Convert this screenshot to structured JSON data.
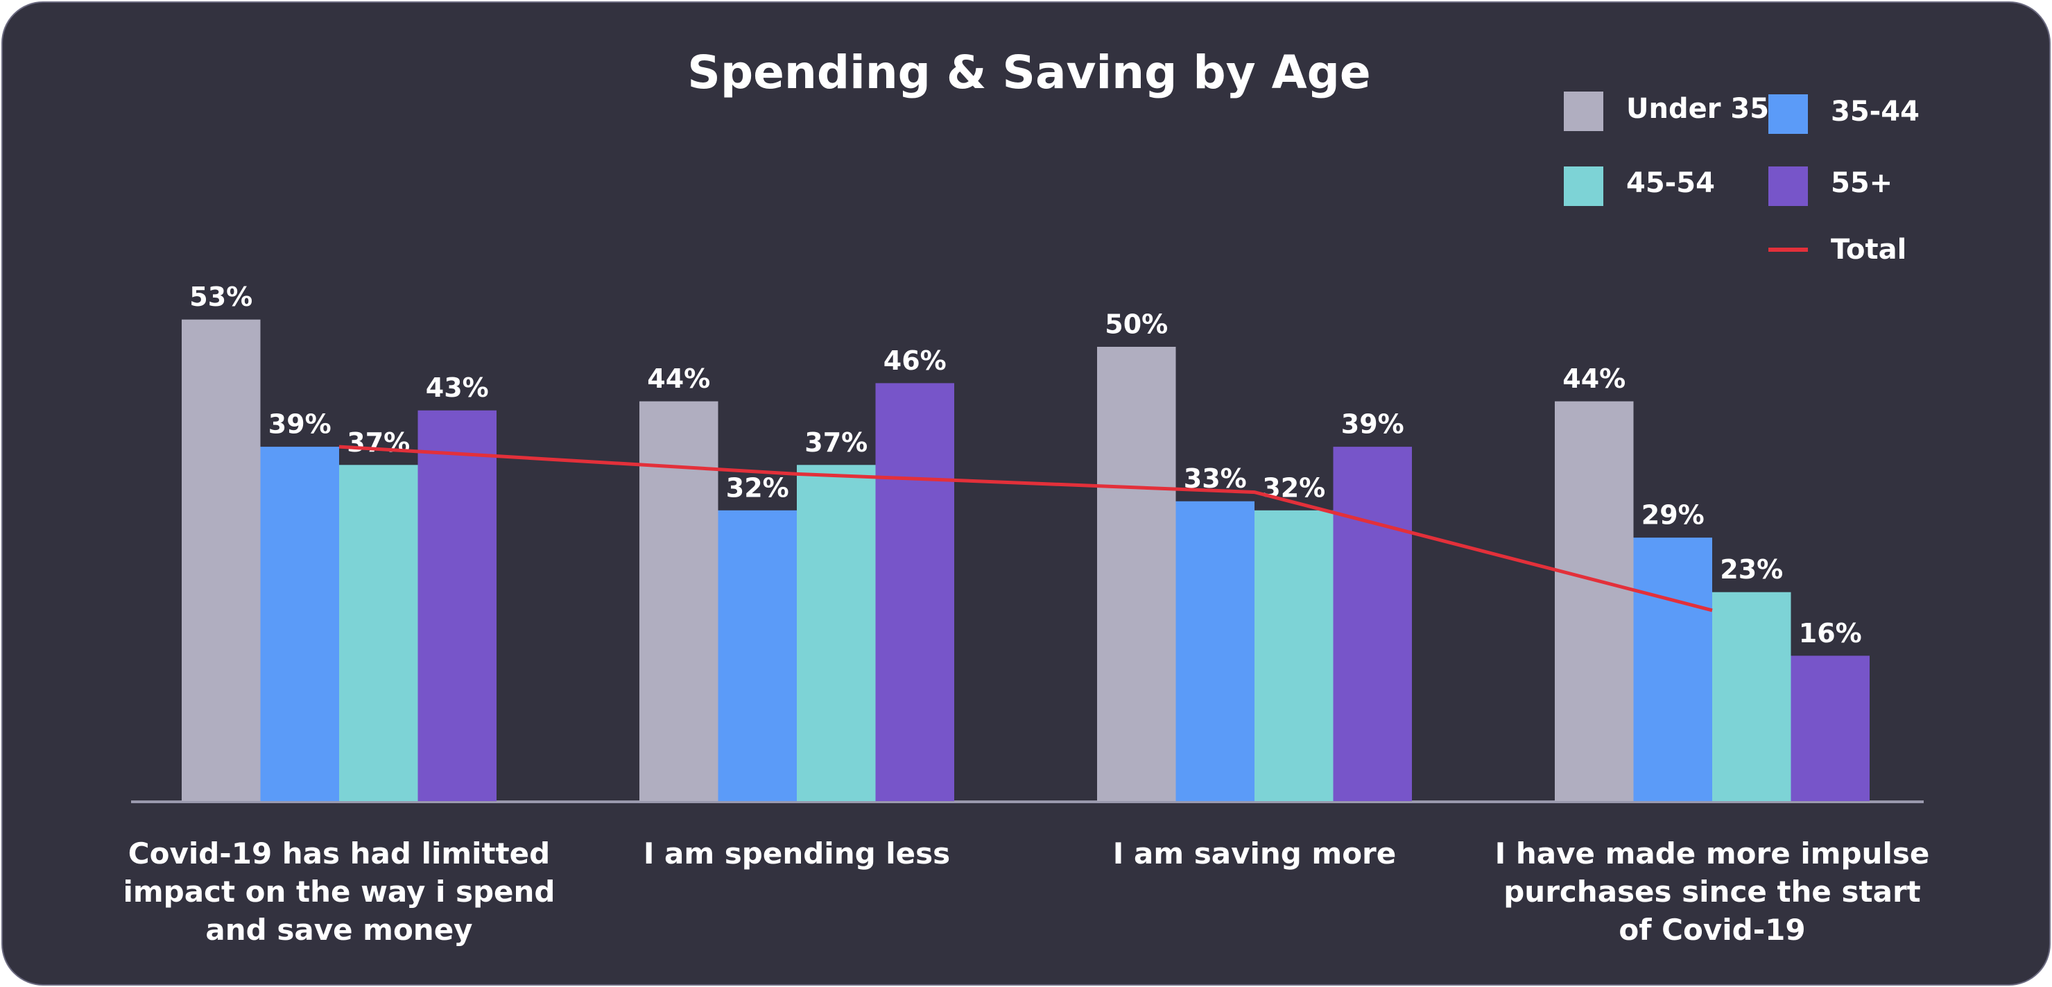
{
  "chart_data": {
    "type": "bar",
    "title": "Spending & Saving by Age",
    "categories": [
      "Covid-19 has had limitted impact on the way i spend and save money",
      "I am spending less",
      "I am saving more",
      "I have made more impulse purchases since the start of Covid-19"
    ],
    "series": [
      {
        "name": "Under 35",
        "color": "#b0aec0",
        "values": [
          53,
          44,
          50,
          44
        ],
        "value_labels": [
          "53%",
          "44%",
          "50%",
          "44%"
        ]
      },
      {
        "name": "35-44",
        "color": "#5b9bf8",
        "values": [
          39,
          32,
          33,
          29
        ],
        "value_labels": [
          "39%",
          "32%",
          "33%",
          "29%"
        ]
      },
      {
        "name": "45-54",
        "color": "#7dd3d6",
        "values": [
          37,
          37,
          32,
          23
        ],
        "value_labels": [
          "37%",
          "37%",
          "32%",
          "23%"
        ]
      },
      {
        "name": "55+",
        "color": "#7755c9",
        "values": [
          43,
          46,
          39,
          16
        ],
        "value_labels": [
          "43%",
          "46%",
          "39%",
          "16%"
        ]
      }
    ],
    "line_series": {
      "name": "Total",
      "color": "#e3303a",
      "values": [
        39,
        36,
        34,
        21
      ]
    },
    "ylim": [
      0,
      60
    ]
  }
}
